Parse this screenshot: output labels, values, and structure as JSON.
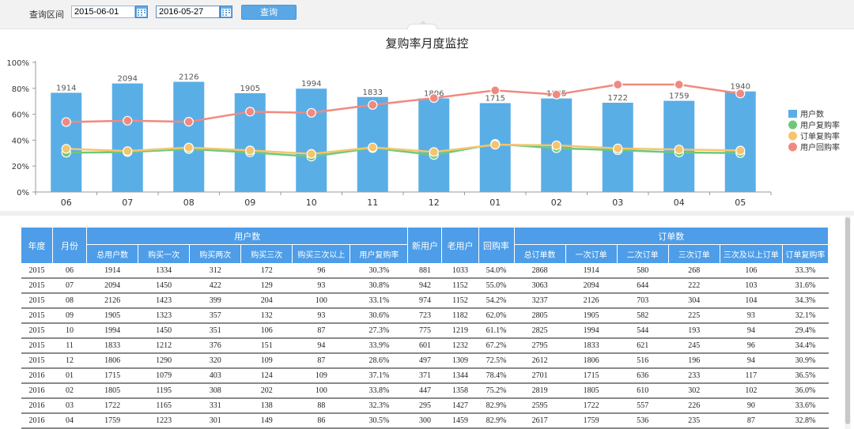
{
  "query": {
    "label": "查询区间",
    "start_date": "2015-06-01",
    "end_date": "2016-05-27",
    "button_label": "查询"
  },
  "chart_data": {
    "type": "bar",
    "title": "复购率月度监控",
    "categories": [
      "06",
      "07",
      "08",
      "09",
      "10",
      "11",
      "12",
      "01",
      "02",
      "03",
      "04",
      "05"
    ],
    "bar_series": {
      "name": "用户数",
      "values": [
        1914,
        2094,
        2126,
        1905,
        1994,
        1833,
        1806,
        1715,
        1805,
        1722,
        1759,
        1940
      ],
      "color": "#5aaee6"
    },
    "line_series": [
      {
        "name": "用户复购率",
        "values": [
          30.3,
          30.8,
          33.1,
          30.6,
          27.3,
          33.9,
          28.6,
          37.1,
          33.8,
          32.3,
          30.5,
          30.0
        ],
        "color": "#6cc97a"
      },
      {
        "name": "订单复购率",
        "values": [
          33.3,
          31.6,
          34.3,
          32.1,
          29.4,
          34.4,
          30.9,
          36.5,
          36.0,
          33.6,
          32.8,
          32.0
        ],
        "color": "#f5c46e"
      },
      {
        "name": "用户回购率",
        "values": [
          54.0,
          55.0,
          54.2,
          62.0,
          61.1,
          67.2,
          72.5,
          78.4,
          75.2,
          82.9,
          82.9,
          76.0
        ],
        "color": "#f08a80"
      }
    ],
    "y_ticks": [
      "0%",
      "20%",
      "40%",
      "60%",
      "80%",
      "100%"
    ],
    "ylim": [
      0,
      100
    ],
    "bar_ylim": [
      0,
      2500
    ],
    "legend_position": "right"
  },
  "table": {
    "top_headers": {
      "year": "年度",
      "month": "月份",
      "users": "用户数",
      "new_users": "新用户",
      "old_users": "老用户",
      "return_rate": "回购率",
      "orders": "订单数"
    },
    "user_sub_headers": [
      "总用户数",
      "购买一次",
      "购买两次",
      "购买三次",
      "购买三次以上",
      "用户复购率"
    ],
    "order_sub_headers": [
      "总订单数",
      "一次订单",
      "二次订单",
      "三次订单",
      "三次及以上订单",
      "订单复购率"
    ],
    "rows": [
      [
        "2015",
        "06",
        "1914",
        "1334",
        "312",
        "172",
        "96",
        "30.3%",
        "881",
        "1033",
        "54.0%",
        "2868",
        "1914",
        "580",
        "268",
        "106",
        "33.3%"
      ],
      [
        "2015",
        "07",
        "2094",
        "1450",
        "422",
        "129",
        "93",
        "30.8%",
        "942",
        "1152",
        "55.0%",
        "3063",
        "2094",
        "644",
        "222",
        "103",
        "31.6%"
      ],
      [
        "2015",
        "08",
        "2126",
        "1423",
        "399",
        "204",
        "100",
        "33.1%",
        "974",
        "1152",
        "54.2%",
        "3237",
        "2126",
        "703",
        "304",
        "104",
        "34.3%"
      ],
      [
        "2015",
        "09",
        "1905",
        "1323",
        "357",
        "132",
        "93",
        "30.6%",
        "723",
        "1182",
        "62.0%",
        "2805",
        "1905",
        "582",
        "225",
        "93",
        "32.1%"
      ],
      [
        "2015",
        "10",
        "1994",
        "1450",
        "351",
        "106",
        "87",
        "27.3%",
        "775",
        "1219",
        "61.1%",
        "2825",
        "1994",
        "544",
        "193",
        "94",
        "29.4%"
      ],
      [
        "2015",
        "11",
        "1833",
        "1212",
        "376",
        "151",
        "94",
        "33.9%",
        "601",
        "1232",
        "67.2%",
        "2795",
        "1833",
        "621",
        "245",
        "96",
        "34.4%"
      ],
      [
        "2015",
        "12",
        "1806",
        "1290",
        "320",
        "109",
        "87",
        "28.6%",
        "497",
        "1309",
        "72.5%",
        "2612",
        "1806",
        "516",
        "196",
        "94",
        "30.9%"
      ],
      [
        "2016",
        "01",
        "1715",
        "1079",
        "403",
        "124",
        "109",
        "37.1%",
        "371",
        "1344",
        "78.4%",
        "2701",
        "1715",
        "636",
        "233",
        "117",
        "36.5%"
      ],
      [
        "2016",
        "02",
        "1805",
        "1195",
        "308",
        "202",
        "100",
        "33.8%",
        "447",
        "1358",
        "75.2%",
        "2819",
        "1805",
        "610",
        "302",
        "102",
        "36.0%"
      ],
      [
        "2016",
        "03",
        "1722",
        "1165",
        "331",
        "138",
        "88",
        "32.3%",
        "295",
        "1427",
        "82.9%",
        "2595",
        "1722",
        "557",
        "226",
        "90",
        "33.6%"
      ],
      [
        "2016",
        "04",
        "1759",
        "1223",
        "301",
        "149",
        "86",
        "30.5%",
        "300",
        "1459",
        "82.9%",
        "2617",
        "1759",
        "536",
        "235",
        "87",
        "32.8%"
      ]
    ]
  }
}
